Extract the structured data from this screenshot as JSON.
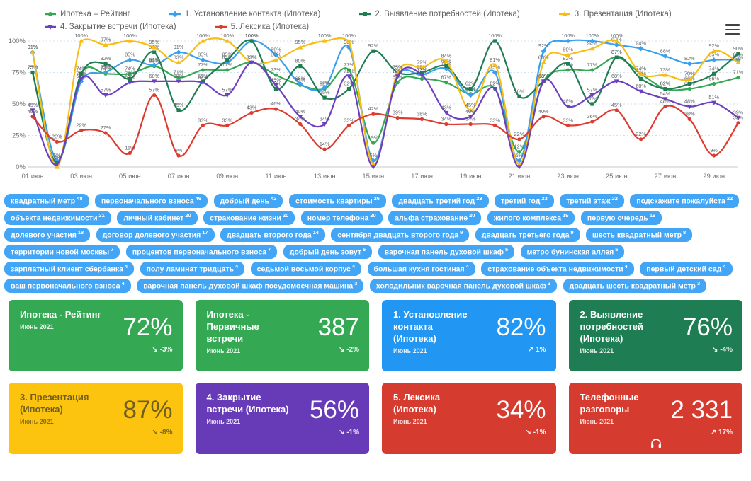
{
  "menu": {
    "icon": "hamburger"
  },
  "chart_data": {
    "type": "line",
    "title": "",
    "ylim": [
      0,
      100
    ],
    "yticks": [
      "0%",
      "25%",
      "50%",
      "75%",
      "100%"
    ],
    "x_tick_labels": [
      "01 июн",
      "03 июн",
      "05 июн",
      "07 июн",
      "09 июн",
      "11 июн",
      "13 июн",
      "15 июн",
      "17 июн",
      "19 июн",
      "21 июн",
      "23 июн",
      "25 июн",
      "27 июн",
      "29 июн"
    ],
    "x_days": 30,
    "grid": true,
    "legend_position": "top",
    "series": [
      {
        "name": "Ипотека – Рейтинг",
        "color": "#34a853",
        "marker": "circle",
        "values": [
          75,
          3,
          74,
          74,
          74,
          80,
          71,
          77,
          77,
          83,
          73,
          65,
          62,
          77,
          19,
          67,
          70,
          67,
          58,
          62,
          12,
          68,
          77,
          77,
          87,
          74,
          62,
          62,
          66,
          71
        ]
      },
      {
        "name": "1. Установление контакта (Ипотека)",
        "color": "#39a0ee",
        "marker": "diamond",
        "values": [
          91,
          5,
          68,
          75,
          85,
          81,
          91,
          85,
          83,
          100,
          89,
          66,
          63,
          95,
          5,
          72,
          73,
          78,
          57,
          75,
          5,
          92,
          100,
          100,
          97,
          94,
          88,
          82,
          85,
          85
        ]
      },
      {
        "name": "2. Выявление потребностей (Ипотека)",
        "color": "#1e7d52",
        "marker": "square",
        "values": [
          75,
          3,
          74,
          82,
          70,
          91,
          45,
          68,
          85,
          100,
          62,
          80,
          55,
          62,
          92,
          75,
          75,
          80,
          62,
          100,
          56,
          68,
          82,
          50,
          87,
          70,
          62,
          66,
          74,
          90
        ]
      },
      {
        "name": "3. Презентация (Ипотека)",
        "color": "#f7bd16",
        "marker": "triangle",
        "values": [
          91,
          0,
          100,
          97,
          100,
          95,
          83,
          100,
          100,
          83,
          85,
          95,
          100,
          100,
          2,
          75,
          79,
          84,
          45,
          81,
          2,
          83,
          89,
          94,
          100,
          74,
          73,
          70,
          92,
          83
        ]
      },
      {
        "name": "4. Закрытие встречи (Ипотека)",
        "color": "#6c40bf",
        "marker": "triangle-down",
        "values": [
          45,
          2,
          70,
          57,
          67,
          68,
          68,
          67,
          57,
          83,
          65,
          40,
          34,
          72,
          0,
          72,
          73,
          43,
          40,
          62,
          0,
          68,
          48,
          57,
          68,
          60,
          54,
          48,
          51,
          39
        ]
      },
      {
        "name": "5. Лексика (Ипотека)",
        "color": "#dd3b2f",
        "marker": "circle",
        "values": [
          40,
          20,
          29,
          27,
          11,
          57,
          9,
          33,
          33,
          43,
          46,
          34,
          14,
          33,
          42,
          39,
          38,
          34,
          34,
          33,
          22,
          40,
          33,
          36,
          45,
          22,
          48,
          38,
          9,
          35
        ]
      }
    ]
  },
  "tags": [
    {
      "text": "квадратный метр",
      "count": 48
    },
    {
      "text": "первоначального взноса",
      "count": 46
    },
    {
      "text": "добрый день",
      "count": 42
    },
    {
      "text": "стоимость квартиры",
      "count": 26
    },
    {
      "text": "двадцать третий год",
      "count": 23
    },
    {
      "text": "третий год",
      "count": 23
    },
    {
      "text": "третий этаж",
      "count": 22
    },
    {
      "text": "подскажите пожалуйста",
      "count": 22
    },
    {
      "text": "объекта недвижимости",
      "count": 21
    },
    {
      "text": "личный кабинет",
      "count": 20
    },
    {
      "text": "страхование жизни",
      "count": 20
    },
    {
      "text": "номер телефона",
      "count": 20
    },
    {
      "text": "альфа страхование",
      "count": 20
    },
    {
      "text": "жилого комплекса",
      "count": 19
    },
    {
      "text": "первую очередь",
      "count": 19
    },
    {
      "text": "долевого участия",
      "count": 18
    },
    {
      "text": "договор долевого участия",
      "count": 17
    },
    {
      "text": "двадцать второго года",
      "count": 14
    },
    {
      "text": "сентября двадцать второго года",
      "count": 9
    },
    {
      "text": "двадцать третьего года",
      "count": 9
    },
    {
      "text": "шесть квадратный метр",
      "count": 8
    },
    {
      "text": "территории новой москвы",
      "count": 7
    },
    {
      "text": "процентов первоначального взноса",
      "count": 7
    },
    {
      "text": "добрый день зовут",
      "count": 6
    },
    {
      "text": "варочная панель духовой шкаф",
      "count": 5
    },
    {
      "text": "метро бунинская аллея",
      "count": 5
    },
    {
      "text": "зарплатный клиент сбербанка",
      "count": 4
    },
    {
      "text": "полу ламинат тридцать",
      "count": 4
    },
    {
      "text": "седьмой восьмой корпус",
      "count": 4
    },
    {
      "text": "большая кухня гостиная",
      "count": 4
    },
    {
      "text": "страхование объекта недвижимости",
      "count": 4
    },
    {
      "text": "первый детский сад",
      "count": 4
    },
    {
      "text": "ваш первоначального взноса",
      "count": 4
    },
    {
      "text": "варочная панель духовой шкаф посудомоечная машина",
      "count": 3
    },
    {
      "text": "холодильник варочная панель духовой шкаф",
      "count": 3
    },
    {
      "text": "двадцать шесть квадратный метр",
      "count": 3
    }
  ],
  "cards": [
    {
      "title": "Ипотека - Рейтинг",
      "period": "Июнь 2021",
      "value": "72%",
      "trend_arrow": "↘",
      "trend": "-3%",
      "bg": "#34a853",
      "dark_text": false,
      "icon": ""
    },
    {
      "title": "Ипотека - Первичные встречи",
      "period": "Июнь 2021",
      "value": "387",
      "trend_arrow": "↘",
      "trend": "-2%",
      "bg": "#34a853",
      "dark_text": false,
      "icon": ""
    },
    {
      "title": "1. Установление контакта (Ипотека)",
      "period": "Июнь 2021",
      "value": "82%",
      "trend_arrow": "↗",
      "trend": "1%",
      "bg": "#2196f3",
      "dark_text": false,
      "icon": ""
    },
    {
      "title": "2. Выявление потребностей (Ипотека)",
      "period": "Июнь 2021",
      "value": "76%",
      "trend_arrow": "↘",
      "trend": "-4%",
      "bg": "#1e7d52",
      "dark_text": false,
      "icon": ""
    },
    {
      "title": "3. Презентация (Ипотека)",
      "period": "Июнь 2021",
      "value": "87%",
      "trend_arrow": "↘",
      "trend": "-8%",
      "bg": "#fcc30f",
      "dark_text": true,
      "icon": ""
    },
    {
      "title": "4. Закрытие встречи (Ипотека)",
      "period": "Июнь 2021",
      "value": "56%",
      "trend_arrow": "↘",
      "trend": "-1%",
      "bg": "#673ab7",
      "dark_text": false,
      "icon": ""
    },
    {
      "title": "5. Лексика (Ипотека)",
      "period": "Июнь 2021",
      "value": "34%",
      "trend_arrow": "↘",
      "trend": "-1%",
      "bg": "#d63b2f",
      "dark_text": false,
      "icon": ""
    },
    {
      "title": "Телефонные разговоры",
      "period": "Июнь 2021",
      "value": "2 331",
      "trend_arrow": "↗",
      "trend": "17%",
      "bg": "#d63b2f",
      "dark_text": false,
      "icon": "headphones"
    }
  ]
}
